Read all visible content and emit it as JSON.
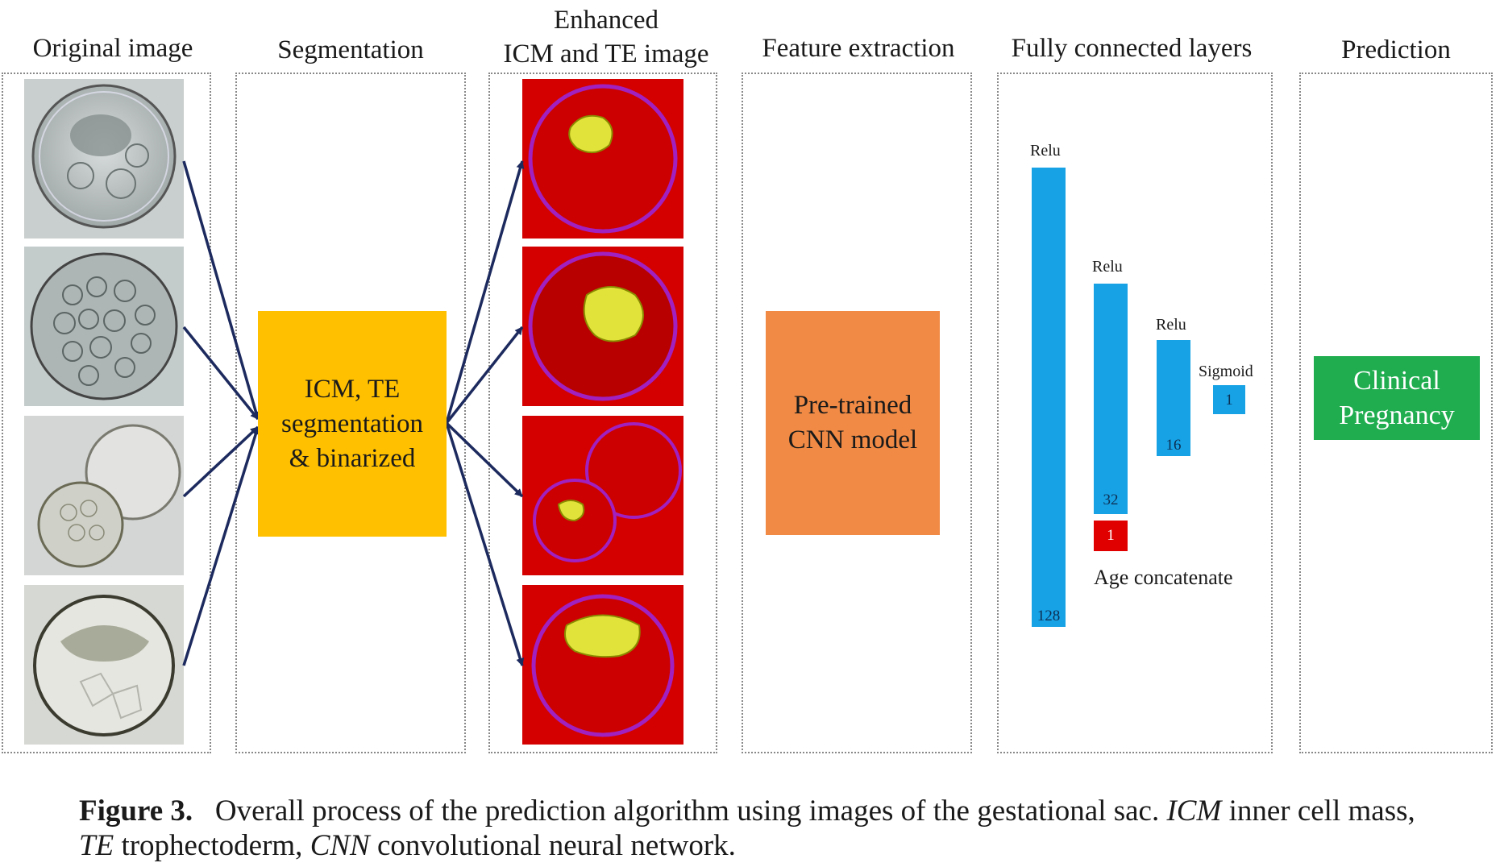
{
  "columns": {
    "original": "Original image",
    "segmentation": "Segmentation",
    "enhanced_line1": "Enhanced",
    "enhanced_line2": "ICM and TE image",
    "feature": "Feature extraction",
    "fc": "Fully connected layers",
    "prediction": "Prediction"
  },
  "boxes": {
    "segmentation": "ICM, TE\nsegmentation\n& binarized",
    "cnn": "Pre-trained\nCNN model",
    "prediction": "Clinical\nPregnancy"
  },
  "layers": [
    {
      "activation": "Relu",
      "units": "128"
    },
    {
      "activation": "Relu",
      "units": "32"
    },
    {
      "activation": "Relu",
      "units": "16"
    },
    {
      "activation": "Sigmoid",
      "units": "1"
    }
  ],
  "age": {
    "units": "1",
    "label": "Age concatenate"
  },
  "caption": {
    "label": "Figure 3.",
    "text_1": "Overall process of the prediction algorithm using images of the gestational sac.",
    "abbr_icm": "ICM",
    "def_icm": "inner cell mass,",
    "abbr_te": "TE",
    "def_te": "trophectoderm,",
    "abbr_cnn": "CNN",
    "def_cnn": "convolutional neural network."
  },
  "colors": {
    "segmentation_box": "#ffc000",
    "cnn_box": "#f08a45",
    "prediction_box": "#1fad4f",
    "layer_bar": "#17a2e6",
    "age_bar": "#e00000",
    "arrow": "#1c2a5e"
  }
}
